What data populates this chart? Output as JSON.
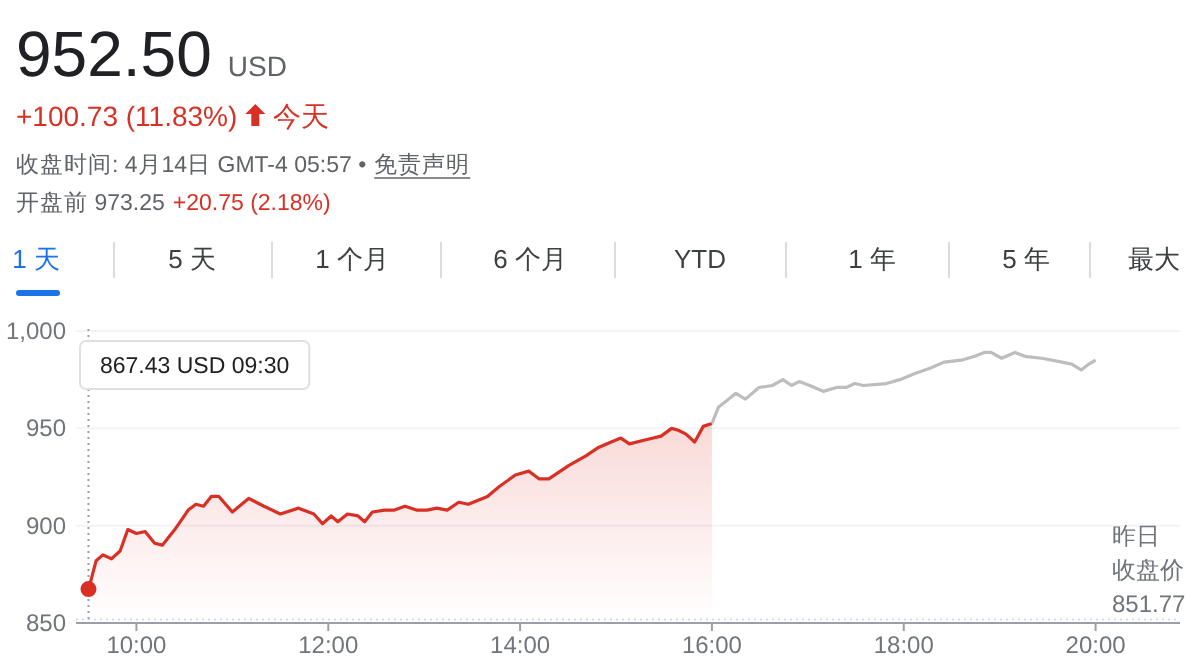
{
  "chart_data": {
    "type": "line",
    "title": "952.50",
    "subtitle": "USD",
    "annotations": [
      "+100.73 (11.83%)",
      "今天",
      "收盘时间: 4月14日 GMT-4 05:57 •",
      "免责声明",
      "开盘前 973.25",
      "+20.75 (2.18%)",
      "1 天",
      "5 天",
      "1 个月",
      "6 个月",
      "YTD",
      "1 年",
      "5 年",
      "最大",
      "867.43 USD 09:30"
    ],
    "xlim": [
      9.37,
      20.88
    ],
    "ylim": [
      850,
      1000
    ],
    "xticks": [
      {
        "value": 10,
        "label": "10:00"
      },
      {
        "value": 12,
        "label": "12:00"
      },
      {
        "value": 14,
        "label": "14:00"
      },
      {
        "value": 16,
        "label": "16:00"
      },
      {
        "value": 18,
        "label": "18:00"
      },
      {
        "value": 20,
        "label": "20:00"
      }
    ],
    "yticks": [
      850,
      900,
      950,
      {
        "value": 1000,
        "label": "1,000"
      }
    ],
    "grid": "y",
    "marker": "none",
    "ref_lines": [
      {
        "axis": "y",
        "value": 851.77,
        "label": "昨日收盘价 851.77",
        "color": "#dadce0",
        "line_style": "dotted"
      },
      {
        "axis": "x",
        "value": 9.5,
        "color": "#9aa0a6",
        "line_style": "dotted"
      }
    ],
    "series": [
      {
        "type": "area",
        "color": "#d93025",
        "x": [
          9.5,
          9.58,
          9.65,
          9.74,
          9.83,
          9.91,
          10.0,
          10.09,
          10.19,
          10.27,
          10.4,
          10.54,
          10.62,
          10.7,
          10.78,
          10.86,
          11.0,
          11.17,
          11.33,
          11.5,
          11.69,
          11.85,
          11.94,
          12.03,
          12.1,
          12.2,
          12.31,
          12.38,
          12.46,
          12.59,
          12.69,
          12.8,
          12.92,
          13.03,
          13.13,
          13.24,
          13.36,
          13.46,
          13.66,
          13.78,
          13.95,
          14.09,
          14.2,
          14.3,
          14.51,
          14.69,
          14.81,
          14.95,
          15.05,
          15.14,
          15.3,
          15.47,
          15.58,
          15.65,
          15.73,
          15.82,
          15.91,
          16.0
        ],
        "values": [
          867,
          882,
          885,
          883,
          887,
          898,
          896,
          897,
          891,
          890,
          898,
          908,
          911,
          910,
          915,
          915,
          907,
          914,
          910,
          906,
          909,
          906,
          901,
          905,
          902,
          906,
          905,
          902,
          907,
          908,
          908,
          910,
          908,
          908,
          909,
          908,
          912,
          911,
          915,
          920,
          926,
          928,
          924,
          924,
          931,
          936,
          940,
          943,
          945,
          942,
          944,
          946,
          950,
          949,
          947,
          943,
          951,
          952.5
        ]
      },
      {
        "color": "#bdbdbd",
        "x": [
          16.0,
          16.07,
          16.15,
          16.25,
          16.35,
          16.49,
          16.63,
          16.74,
          16.83,
          16.91,
          17.02,
          17.16,
          17.3,
          17.4,
          17.49,
          17.58,
          17.82,
          17.96,
          18.11,
          18.28,
          18.42,
          18.6,
          18.74,
          18.84,
          18.91,
          19.02,
          19.16,
          19.26,
          19.44,
          19.65,
          19.75,
          19.85,
          19.93,
          20.0
        ],
        "values": [
          952.5,
          961,
          964,
          968,
          965,
          971,
          972,
          975,
          972,
          974,
          972,
          969,
          971,
          971,
          973,
          972,
          973,
          975,
          978,
          981,
          984,
          985,
          987,
          989,
          989,
          986,
          989,
          987,
          986,
          984,
          983,
          980,
          983,
          985
        ]
      },
      {
        "type": "scatter",
        "color": "#d93025",
        "marker": "circle",
        "x": [
          9.5
        ],
        "values": [
          867.43
        ]
      }
    ]
  }
}
